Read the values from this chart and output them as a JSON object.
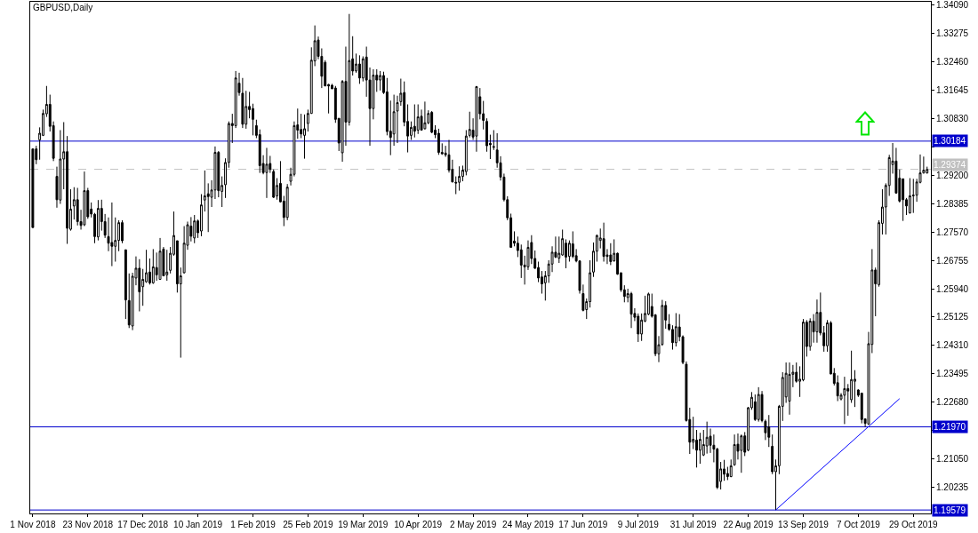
{
  "chart_data": {
    "type": "candlestick",
    "title": "GBPUSD,Daily",
    "categories": [
      "1 Nov 2018",
      null,
      null,
      null,
      null,
      null,
      null,
      null,
      null,
      null,
      null,
      null,
      null,
      null,
      null,
      null,
      "23 Nov 2018",
      null,
      null,
      null,
      null,
      null,
      null,
      null,
      null,
      null,
      null,
      null,
      null,
      null,
      null,
      null,
      "17 Dec 2018",
      null,
      null,
      null,
      null,
      null,
      null,
      null,
      null,
      null,
      null,
      null,
      null,
      null,
      null,
      null,
      "10 Jan 2019",
      null,
      null,
      null,
      null,
      null,
      null,
      null,
      null,
      null,
      null,
      null,
      null,
      null,
      null,
      null,
      "1 Feb 2019",
      null,
      null,
      null,
      null,
      null,
      null,
      null,
      null,
      null,
      null,
      null,
      null,
      null,
      null,
      null,
      "25 Feb 2019",
      null,
      null,
      null,
      null,
      null,
      null,
      null,
      null,
      null,
      null,
      null,
      null,
      null,
      null,
      null,
      "19 Mar 2019",
      null,
      null,
      null,
      null,
      null,
      null,
      null,
      null,
      null,
      null,
      null,
      null,
      null,
      null,
      null,
      "10 Apr 2019",
      null,
      null,
      null,
      null,
      null,
      null,
      null,
      null,
      null,
      null,
      null,
      null,
      null,
      null,
      null,
      "2 May 2019",
      null,
      null,
      null,
      null,
      null,
      null,
      null,
      null,
      null,
      null,
      null,
      null,
      null,
      null,
      null,
      "24 May 2019",
      null,
      null,
      null,
      null,
      null,
      null,
      null,
      null,
      null,
      null,
      null,
      null,
      null,
      null,
      null,
      "17 Jun 2019",
      null,
      null,
      null,
      null,
      null,
      null,
      null,
      null,
      null,
      null,
      null,
      null,
      null,
      null,
      null,
      "9 Jul 2019",
      null,
      null,
      null,
      null,
      null,
      null,
      null,
      null,
      null,
      null,
      null,
      null,
      null,
      null,
      null,
      "31 Jul 2019",
      null,
      null,
      null,
      null,
      null,
      null,
      null,
      null,
      null,
      null,
      null,
      null,
      null,
      null,
      null,
      "22 Aug 2019",
      null,
      null,
      null,
      null,
      null,
      null,
      null,
      null,
      null,
      null,
      null,
      null,
      null,
      null,
      null,
      "13 Sep 2019",
      null,
      null,
      null,
      null,
      null,
      null,
      null,
      null,
      null,
      null,
      null,
      null,
      null,
      null,
      null,
      "7 Oct 2019",
      null,
      null,
      null,
      null,
      null,
      null,
      null,
      null,
      null,
      null,
      null,
      null,
      null,
      null,
      null,
      "29 Oct 2019",
      null,
      null,
      null,
      null
    ],
    "ohlc": [
      [
        1.2996,
        1.2996,
        1.277,
        1.277
      ],
      [
        1.2996,
        1.3005,
        1.2952,
        1.2965
      ],
      [
        1.3022,
        1.3058,
        1.2965,
        1.3041
      ],
      [
        1.3035,
        1.3109,
        1.3033,
        1.3098
      ],
      [
        1.3097,
        1.3177,
        1.3088,
        1.3124
      ],
      [
        1.3124,
        1.3152,
        1.3046,
        1.3061
      ],
      [
        1.3063,
        1.3075,
        1.2961,
        1.2969
      ],
      [
        1.2917,
        1.2945,
        1.2827,
        1.285
      ],
      [
        1.2849,
        1.305,
        1.2838,
        1.2967
      ],
      [
        1.2967,
        1.3073,
        1.288,
        1.2988
      ],
      [
        1.2988,
        1.3033,
        1.2723,
        1.2768
      ],
      [
        1.2765,
        1.288,
        1.2761,
        1.2823
      ],
      [
        1.2832,
        1.2886,
        1.2793,
        1.285
      ],
      [
        1.285,
        1.2884,
        1.2776,
        1.2787
      ],
      [
        1.2787,
        1.2821,
        1.2764,
        1.2776
      ],
      [
        1.2778,
        1.2931,
        1.2774,
        1.2876
      ],
      [
        1.2876,
        1.2884,
        1.2795,
        1.2801
      ],
      [
        1.2823,
        1.2842,
        1.2799,
        1.2809
      ],
      [
        1.2808,
        1.2812,
        1.2725,
        1.2744
      ],
      [
        1.2743,
        1.2849,
        1.2733,
        1.2825
      ],
      [
        1.2825,
        1.285,
        1.2761,
        1.2787
      ],
      [
        1.2787,
        1.2809,
        1.274,
        1.2748
      ],
      [
        1.2744,
        1.2799,
        1.2702,
        1.2725
      ],
      [
        1.2727,
        1.2842,
        1.2659,
        1.2716
      ],
      [
        1.2716,
        1.2799,
        1.2672,
        1.2733
      ],
      [
        1.2733,
        1.2791,
        1.2702,
        1.2784
      ],
      [
        1.2784,
        1.2791,
        1.2725,
        1.2732
      ],
      [
        1.2706,
        1.2706,
        1.2507,
        1.2562
      ],
      [
        1.256,
        1.2638,
        1.2481,
        1.249
      ],
      [
        1.2487,
        1.264,
        1.2475,
        1.263
      ],
      [
        1.2625,
        1.2687,
        1.2604,
        1.2653
      ],
      [
        1.2653,
        1.2679,
        1.2529,
        1.2585
      ],
      [
        1.26,
        1.2651,
        1.2545,
        1.2621
      ],
      [
        1.2614,
        1.2706,
        1.2611,
        1.264
      ],
      [
        1.2642,
        1.2681,
        1.2606,
        1.2611
      ],
      [
        1.2611,
        1.2708,
        1.2608,
        1.2657
      ],
      [
        1.2655,
        1.2698,
        1.2617,
        1.2634
      ],
      [
        1.2621,
        1.274,
        1.2621,
        1.2702
      ],
      [
        1.2708,
        1.2714,
        1.263,
        1.2631
      ],
      [
        1.2634,
        1.2706,
        1.2617,
        1.2642
      ],
      [
        1.2647,
        1.2714,
        1.2638,
        1.2696
      ],
      [
        1.2693,
        1.2816,
        1.2689,
        1.2747
      ],
      [
        1.2732,
        1.2732,
        1.2583,
        1.2608
      ],
      [
        1.2608,
        1.2655,
        1.2396,
        1.2631
      ],
      [
        1.264,
        1.2774,
        1.2638,
        1.2725
      ],
      [
        1.2719,
        1.2787,
        1.2706,
        1.2778
      ],
      [
        1.2774,
        1.28,
        1.273,
        1.2745
      ],
      [
        1.274,
        1.2806,
        1.2725,
        1.2789
      ],
      [
        1.2789,
        1.2793,
        1.274,
        1.2755
      ],
      [
        1.276,
        1.2866,
        1.2745,
        1.2835
      ],
      [
        1.2849,
        1.2934,
        1.2816,
        1.2861
      ],
      [
        1.2867,
        1.2897,
        1.2757,
        1.2859
      ],
      [
        1.2857,
        1.2906,
        1.2829,
        1.2878
      ],
      [
        1.2878,
        1.3003,
        1.2852,
        1.2986
      ],
      [
        1.2986,
        1.299,
        1.2857,
        1.2876
      ],
      [
        1.2874,
        1.2917,
        1.2829,
        1.2891
      ],
      [
        1.2893,
        1.2969,
        1.2855,
        1.2957
      ],
      [
        1.2957,
        1.3075,
        1.2942,
        1.3069
      ],
      [
        1.3069,
        1.3097,
        1.3013,
        1.3063
      ],
      [
        1.3063,
        1.322,
        1.3056,
        1.32
      ],
      [
        1.3185,
        1.3215,
        1.3149,
        1.3158
      ],
      [
        1.3156,
        1.32,
        1.3056,
        1.3067
      ],
      [
        1.3067,
        1.3163,
        1.3054,
        1.3118
      ],
      [
        1.3118,
        1.316,
        1.3084,
        1.3109
      ],
      [
        1.3112,
        1.3126,
        1.3035,
        1.3081
      ],
      [
        1.3063,
        1.308,
        1.3027,
        1.3035
      ],
      [
        1.3037,
        1.3052,
        1.2927,
        1.2948
      ],
      [
        1.2954,
        1.2978,
        1.2923,
        1.2928
      ],
      [
        1.2928,
        1.2999,
        1.2855,
        1.2952
      ],
      [
        1.2954,
        1.2976,
        1.2927,
        1.2937
      ],
      [
        1.2931,
        1.2937,
        1.2855,
        1.2857
      ],
      [
        1.2861,
        1.2912,
        1.285,
        1.2891
      ],
      [
        1.2897,
        1.2961,
        1.2842,
        1.2844
      ],
      [
        1.2846,
        1.2861,
        1.2774,
        1.2799
      ],
      [
        1.2799,
        1.2895,
        1.2791,
        1.2886
      ],
      [
        1.2903,
        1.2942,
        1.2891,
        1.2923
      ],
      [
        1.2923,
        1.3075,
        1.2917,
        1.3063
      ],
      [
        1.3065,
        1.3112,
        1.3025,
        1.305
      ],
      [
        1.3052,
        1.3097,
        1.3027,
        1.3039
      ],
      [
        1.3035,
        1.3095,
        1.2968,
        1.3054
      ],
      [
        1.3069,
        1.3109,
        1.3046,
        1.3098
      ],
      [
        1.3098,
        1.3288,
        1.3097,
        1.3251
      ],
      [
        1.3249,
        1.3351,
        1.3234,
        1.3307
      ],
      [
        1.3309,
        1.3319,
        1.3254,
        1.3262
      ],
      [
        1.3262,
        1.3285,
        1.3171,
        1.3205
      ],
      [
        1.3245,
        1.3251,
        1.3177,
        1.3177
      ],
      [
        1.3181,
        1.3183,
        1.3098,
        1.3177
      ],
      [
        1.3179,
        1.3183,
        1.3168,
        1.3169
      ],
      [
        1.3171,
        1.3177,
        1.3071,
        1.3081
      ],
      [
        1.3084,
        1.3084,
        1.299,
        1.3013
      ],
      [
        1.2985,
        1.3194,
        1.2959,
        1.319
      ],
      [
        1.319,
        1.329,
        1.3005,
        1.3073
      ],
      [
        1.3073,
        1.3384,
        1.3063,
        1.325
      ],
      [
        1.3255,
        1.332,
        1.3207,
        1.322
      ],
      [
        1.322,
        1.327,
        1.3215,
        1.324
      ],
      [
        1.324,
        1.3265,
        1.3183,
        1.32
      ],
      [
        1.32,
        1.3262,
        1.319,
        1.3255
      ],
      [
        1.326,
        1.329,
        1.3146,
        1.3194
      ],
      [
        1.3194,
        1.323,
        1.3005,
        1.3112
      ],
      [
        1.3112,
        1.3225,
        1.3081,
        1.3208
      ],
      [
        1.3208,
        1.3225,
        1.316,
        1.3194
      ],
      [
        1.3194,
        1.322,
        1.3164,
        1.3207
      ],
      [
        1.3207,
        1.3218,
        1.3154,
        1.3158
      ],
      [
        1.316,
        1.32,
        1.3035,
        1.3046
      ],
      [
        1.3047,
        1.3135,
        1.2978,
        1.3029
      ],
      [
        1.3039,
        1.3152,
        1.3005,
        1.3103
      ],
      [
        1.3105,
        1.3149,
        1.3013,
        1.3129
      ],
      [
        1.3132,
        1.3198,
        1.312,
        1.3156
      ],
      [
        1.3158,
        1.319,
        1.3061,
        1.3073
      ],
      [
        1.3075,
        1.3124,
        1.2986,
        1.3033
      ],
      [
        1.3035,
        1.3075,
        1.3022,
        1.3058
      ],
      [
        1.3061,
        1.3124,
        1.3029,
        1.3047
      ],
      [
        1.305,
        1.3124,
        1.3039,
        1.3088
      ],
      [
        1.309,
        1.3109,
        1.305,
        1.305
      ],
      [
        1.3054,
        1.3132,
        1.3052,
        1.3071
      ],
      [
        1.3071,
        1.3107,
        1.3067,
        1.3098
      ],
      [
        1.3101,
        1.3105,
        1.3041,
        1.3044
      ],
      [
        1.305,
        1.3064,
        1.3027,
        1.3037
      ],
      [
        1.3041,
        1.3054,
        1.2979,
        1.2986
      ],
      [
        1.2986,
        1.3012,
        1.2979,
        1.2982
      ],
      [
        1.2984,
        1.3005,
        1.2973,
        1.2979
      ],
      [
        1.2979,
        1.3022,
        1.2928,
        1.2935
      ],
      [
        1.2937,
        1.2965,
        1.29,
        1.2901
      ],
      [
        1.29,
        1.2917,
        1.2866,
        1.2898
      ],
      [
        1.29,
        1.2946,
        1.2876,
        1.2917
      ],
      [
        1.2917,
        1.2948,
        1.2903,
        1.2935
      ],
      [
        1.2931,
        1.305,
        1.292,
        1.3033
      ],
      [
        1.3035,
        1.3103,
        1.3029,
        1.3052
      ],
      [
        1.305,
        1.3084,
        1.3022,
        1.303
      ],
      [
        1.3033,
        1.3177,
        1.2988,
        1.3175
      ],
      [
        1.3146,
        1.3171,
        1.3081,
        1.3097
      ],
      [
        1.3097,
        1.3134,
        1.3052,
        1.3078
      ],
      [
        1.3075,
        1.3084,
        1.2988,
        1.3005
      ],
      [
        1.3012,
        1.3037,
        1.2967,
        1.3008
      ],
      [
        1.3003,
        1.305,
        1.2993,
        1.3001
      ],
      [
        1.2993,
        1.3041,
        1.2942,
        1.2956
      ],
      [
        1.2956,
        1.2975,
        1.2905,
        1.2915
      ],
      [
        1.2915,
        1.2925,
        1.2845,
        1.285
      ],
      [
        1.285,
        1.286,
        1.2791,
        1.2798
      ],
      [
        1.2798,
        1.281,
        1.2713,
        1.2713
      ],
      [
        1.2731,
        1.2759,
        1.2716,
        1.2725
      ],
      [
        1.2725,
        1.2744,
        1.2685,
        1.2704
      ],
      [
        1.2706,
        1.2721,
        1.2625,
        1.2662
      ],
      [
        1.2662,
        1.2689,
        1.2606,
        1.2657
      ],
      [
        1.2657,
        1.2733,
        1.2648,
        1.2713
      ],
      [
        1.2727,
        1.2748,
        1.2665,
        1.2681
      ],
      [
        1.2681,
        1.2704,
        1.2651,
        1.2653
      ],
      [
        1.2655,
        1.2672,
        1.2613,
        1.2625
      ],
      [
        1.2628,
        1.2645,
        1.258,
        1.2608
      ],
      [
        1.2611,
        1.2645,
        1.256,
        1.2631
      ],
      [
        1.2631,
        1.2676,
        1.2611,
        1.2665
      ],
      [
        1.2665,
        1.2716,
        1.2642,
        1.2699
      ],
      [
        1.2699,
        1.2744,
        1.2682,
        1.2685
      ],
      [
        1.2682,
        1.2744,
        1.2668,
        1.2696
      ],
      [
        1.2691,
        1.2764,
        1.2689,
        1.2738
      ],
      [
        1.2725,
        1.2736,
        1.2653,
        1.2685
      ],
      [
        1.2687,
        1.2733,
        1.2672,
        1.2725
      ],
      [
        1.2723,
        1.2759,
        1.2682,
        1.2687
      ],
      [
        1.2689,
        1.2708,
        1.267,
        1.2674
      ],
      [
        1.2674,
        1.2676,
        1.258,
        1.2589
      ],
      [
        1.258,
        1.2606,
        1.2529,
        1.2532
      ],
      [
        1.2534,
        1.2566,
        1.2507,
        1.2557
      ],
      [
        1.2557,
        1.2676,
        1.254,
        1.264
      ],
      [
        1.2642,
        1.2727,
        1.2628,
        1.2702
      ],
      [
        1.2702,
        1.275,
        1.2672,
        1.2747
      ],
      [
        1.2733,
        1.2767,
        1.271,
        1.274
      ],
      [
        1.2738,
        1.2784,
        1.2672,
        1.2687
      ],
      [
        1.2691,
        1.2708,
        1.2665,
        1.2687
      ],
      [
        1.2691,
        1.2725,
        1.2662,
        1.2672
      ],
      [
        1.2674,
        1.2736,
        1.2672,
        1.2696
      ],
      [
        1.2696,
        1.2698,
        1.2634,
        1.2636
      ],
      [
        1.264,
        1.264,
        1.2585,
        1.2591
      ],
      [
        1.2591,
        1.2604,
        1.2555,
        1.2572
      ],
      [
        1.2569,
        1.2594,
        1.2555,
        1.258
      ],
      [
        1.258,
        1.2585,
        1.2481,
        1.2521
      ],
      [
        1.2523,
        1.2538,
        1.2501,
        1.2512
      ],
      [
        1.2515,
        1.2523,
        1.2441,
        1.2464
      ],
      [
        1.2464,
        1.2523,
        1.2444,
        1.2504
      ],
      [
        1.2501,
        1.2574,
        1.2498,
        1.2523
      ],
      [
        1.2521,
        1.2583,
        1.2518,
        1.2579
      ],
      [
        1.2543,
        1.258,
        1.2511,
        1.2515
      ],
      [
        1.2519,
        1.2521,
        1.24,
        1.2407
      ],
      [
        1.2407,
        1.2458,
        1.2383,
        1.2433
      ],
      [
        1.2434,
        1.2562,
        1.243,
        1.2546
      ],
      [
        1.2546,
        1.2558,
        1.2479,
        1.2504
      ],
      [
        1.2492,
        1.2521,
        1.2473,
        1.2477
      ],
      [
        1.2477,
        1.2489,
        1.2419,
        1.2439
      ],
      [
        1.2439,
        1.2524,
        1.2428,
        1.2485
      ],
      [
        1.2484,
        1.2521,
        1.2443,
        1.2456
      ],
      [
        1.2456,
        1.246,
        1.2377,
        1.2382
      ],
      [
        1.2377,
        1.2385,
        1.2212,
        1.2215
      ],
      [
        1.2218,
        1.2252,
        1.2119,
        1.2153
      ],
      [
        1.2153,
        1.2226,
        1.2133,
        1.2161
      ],
      [
        1.2159,
        1.2188,
        1.208,
        1.213
      ],
      [
        1.213,
        1.218,
        1.2091,
        1.2161
      ],
      [
        1.2116,
        1.2188,
        1.2113,
        1.2146
      ],
      [
        1.2142,
        1.2212,
        1.212,
        1.2167
      ],
      [
        1.217,
        1.2192,
        1.2122,
        1.2144
      ],
      [
        1.2144,
        1.2175,
        1.2095,
        1.2133
      ],
      [
        1.2133,
        1.2137,
        1.2018,
        1.2023
      ],
      [
        1.204,
        1.2096,
        1.2017,
        1.2076
      ],
      [
        1.2076,
        1.2102,
        1.2042,
        1.2061
      ],
      [
        1.2063,
        1.2082,
        1.2044,
        1.2054
      ],
      [
        1.2054,
        1.2103,
        1.2052,
        1.2085
      ],
      [
        1.2088,
        1.2175,
        1.2085,
        1.2146
      ],
      [
        1.2147,
        1.2178,
        1.2103,
        1.2127
      ],
      [
        1.2129,
        1.2175,
        1.2065,
        1.2171
      ],
      [
        1.2171,
        1.2182,
        1.2113,
        1.2124
      ],
      [
        1.213,
        1.2254,
        1.2127,
        1.2252
      ],
      [
        1.2252,
        1.2297,
        1.2246,
        1.2282
      ],
      [
        1.2269,
        1.229,
        1.2214,
        1.2218
      ],
      [
        1.2218,
        1.2311,
        1.2212,
        1.229
      ],
      [
        1.229,
        1.23,
        1.221,
        1.2215
      ],
      [
        1.2213,
        1.2218,
        1.2159,
        1.218
      ],
      [
        1.2197,
        1.2231,
        1.2139,
        1.2167
      ],
      [
        1.2141,
        1.2175,
        1.2061,
        1.2068
      ],
      [
        1.2068,
        1.2103,
        1.1958,
        1.2085
      ],
      [
        1.2085,
        1.226,
        1.2061,
        1.2256
      ],
      [
        1.2256,
        1.2354,
        1.2214,
        1.2339
      ],
      [
        1.2283,
        1.2382,
        1.2266,
        1.2351
      ],
      [
        1.2271,
        1.2382,
        1.2232,
        1.2348
      ],
      [
        1.2348,
        1.2375,
        1.2311,
        1.2354
      ],
      [
        1.2354,
        1.2382,
        1.2324,
        1.2328
      ],
      [
        1.2328,
        1.2371,
        1.2283,
        1.2334
      ],
      [
        1.2332,
        1.2507,
        1.2328,
        1.2498
      ],
      [
        1.2498,
        1.2504,
        1.2399,
        1.2428
      ],
      [
        1.2428,
        1.2509,
        1.2416,
        1.2501
      ],
      [
        1.2501,
        1.2521,
        1.2439,
        1.247
      ],
      [
        1.247,
        1.2563,
        1.2439,
        1.2526
      ],
      [
        1.2526,
        1.2583,
        1.246,
        1.2467
      ],
      [
        1.2467,
        1.2487,
        1.2413,
        1.243
      ],
      [
        1.243,
        1.2504,
        1.2413,
        1.2496
      ],
      [
        1.2496,
        1.2501,
        1.2348,
        1.2349
      ],
      [
        1.2351,
        1.2366,
        1.2316,
        1.2322
      ],
      [
        1.2324,
        1.2345,
        1.2271,
        1.2286
      ],
      [
        1.2277,
        1.2294,
        1.2273,
        1.2288
      ],
      [
        1.2288,
        1.2341,
        1.2205,
        1.2307
      ],
      [
        1.2307,
        1.232,
        1.2229,
        1.23
      ],
      [
        1.2275,
        1.2416,
        1.2266,
        1.2333
      ],
      [
        1.2328,
        1.236,
        1.2254,
        1.2334
      ],
      [
        1.2303,
        1.2305,
        1.2283,
        1.2288
      ],
      [
        1.2294,
        1.2294,
        1.2207,
        1.2218
      ],
      [
        1.222,
        1.222,
        1.2197,
        1.2207
      ],
      [
        1.2205,
        1.247,
        1.2203,
        1.2436
      ],
      [
        1.2434,
        1.2708,
        1.2409,
        1.2648
      ],
      [
        1.2648,
        1.2655,
        1.2515,
        1.2608
      ],
      [
        1.2606,
        1.2791,
        1.26,
        1.2784
      ],
      [
        1.2782,
        1.288,
        1.275,
        1.2829
      ],
      [
        1.2829,
        1.2897,
        1.275,
        1.2891
      ],
      [
        1.2891,
        1.2979,
        1.2861,
        1.2971
      ],
      [
        1.2951,
        1.3013,
        1.2925,
        1.2961
      ],
      [
        1.2961,
        1.2999,
        1.2867,
        1.2869
      ],
      [
        1.2912,
        1.2937,
        1.2842,
        1.2846
      ],
      [
        1.291,
        1.291,
        1.2789,
        1.285
      ],
      [
        1.285,
        1.2855,
        1.2806,
        1.2832
      ],
      [
        1.2812,
        1.2912,
        1.281,
        1.2861
      ],
      [
        1.2861,
        1.291,
        1.2812,
        1.2863
      ],
      [
        1.2863,
        1.291,
        1.2844,
        1.2901
      ],
      [
        1.29,
        1.298,
        1.2897,
        1.2927
      ],
      [
        1.2927,
        1.2974,
        1.2925,
        1.2935
      ],
      [
        1.2927,
        1.2945,
        1.2925,
        1.2937
      ]
    ],
    "series": [
      {
        "type": "line",
        "color": "#0000ff",
        "values": [
          null,
          null,
          null,
          null,
          null,
          null,
          null,
          null,
          null,
          null,
          null,
          null,
          null,
          null,
          null,
          null,
          null,
          null,
          null,
          null,
          null,
          null,
          null,
          null,
          null,
          null,
          null,
          null,
          null,
          null,
          null,
          null,
          null,
          null,
          null,
          null,
          null,
          null,
          null,
          null,
          null,
          null,
          null,
          null,
          null,
          null,
          null,
          null,
          null,
          null,
          null,
          null,
          null,
          null,
          null,
          null,
          null,
          null,
          null,
          null,
          null,
          null,
          null,
          null,
          null,
          null,
          null,
          null,
          null,
          null,
          null,
          null,
          null,
          null,
          null,
          null,
          null,
          null,
          null,
          null,
          null,
          null,
          null,
          null,
          null,
          null,
          null,
          null,
          null,
          null,
          null,
          null,
          null,
          null,
          null,
          null,
          null,
          null,
          null,
          null,
          null,
          null,
          null,
          null,
          null,
          null,
          null,
          null,
          null,
          null,
          null,
          null,
          null,
          null,
          null,
          null,
          null,
          null,
          null,
          null,
          null,
          null,
          null,
          null,
          null,
          null,
          null,
          null,
          null,
          null,
          null,
          null,
          null,
          null,
          null,
          null,
          null,
          null,
          null,
          null,
          null,
          null,
          null,
          null,
          null,
          null,
          null,
          null,
          null,
          null,
          null,
          null,
          null,
          null,
          null,
          null,
          null,
          null,
          null,
          null,
          null,
          null,
          null,
          null,
          null,
          null,
          null,
          null,
          null,
          null,
          null,
          null,
          null,
          null,
          null,
          null,
          null,
          null,
          null,
          null,
          null,
          null,
          null,
          null,
          null,
          null,
          null,
          null,
          null,
          null,
          null,
          null,
          null,
          null,
          null,
          null,
          null,
          null,
          null,
          null,
          null,
          null,
          null,
          null,
          null,
          null,
          null,
          null,
          null,
          null,
          null,
          null,
          null,
          null,
          null,
          null,
          1.1958,
          null,
          null,
          null,
          null,
          null,
          null,
          null,
          null,
          null,
          null,
          null,
          null,
          null,
          null,
          null,
          null,
          null,
          null,
          null,
          null,
          null,
          null,
          null,
          null,
          null,
          null,
          null,
          null,
          null,
          null,
          null,
          null,
          null,
          null,
          null,
          1.2278,
          null,
          null,
          null,
          null,
          null,
          null,
          null,
          null
        ]
      }
    ],
    "ref_lines": [
      {
        "axis": "y",
        "value": 1.30184,
        "label": "1.30184",
        "color": "#0000cc"
      },
      {
        "axis": "y",
        "value": 1.29374,
        "label": "1.29374",
        "color": "#c0c0c0",
        "line_style": "dashed"
      },
      {
        "axis": "y",
        "value": 1.2197,
        "label": "1.21970",
        "color": "#0000cc"
      },
      {
        "axis": "y",
        "value": 1.19579,
        "label": "1.19579",
        "color": "#0000cc"
      }
    ],
    "ylim": [
      1.1948,
      1.3419
    ],
    "yticks": [
      {
        "value": 1.3409,
        "label": "1.34090"
      },
      1.33275,
      {
        "value": 1.3246,
        "label": "1.32460"
      },
      1.31645,
      {
        "value": 1.3083,
        "label": "1.30830"
      },
      {
        "value": 1.30015,
        "label": null
      },
      {
        "value": 1.292,
        "label": "1.29200"
      },
      1.28385,
      {
        "value": 1.2757,
        "label": "1.27570"
      },
      1.26755,
      {
        "value": 1.2594,
        "label": "1.25940"
      },
      1.25125,
      {
        "value": 1.2431,
        "label": "1.24310"
      },
      1.23495,
      {
        "value": 1.2268,
        "label": "1.22680"
      },
      {
        "value": 1.21865,
        "label": null
      },
      {
        "value": 1.2105,
        "label": "1.21050"
      },
      1.20235
    ]
  }
}
